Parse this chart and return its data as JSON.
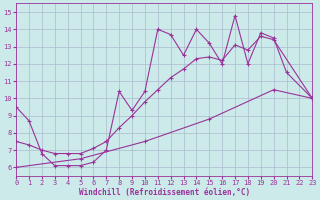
{
  "xlabel": "Windchill (Refroidissement éolien,°C)",
  "xlim": [
    0,
    23
  ],
  "ylim": [
    5.5,
    15.5
  ],
  "yticks": [
    6,
    7,
    8,
    9,
    10,
    11,
    12,
    13,
    14,
    15
  ],
  "xticks": [
    0,
    1,
    2,
    3,
    4,
    5,
    6,
    7,
    8,
    9,
    10,
    11,
    12,
    13,
    14,
    15,
    16,
    17,
    18,
    19,
    20,
    21,
    22,
    23
  ],
  "bg_color": "#cceaea",
  "grid_color": "#aabbcc",
  "line_color": "#993399",
  "line1_x": [
    0,
    1,
    2,
    3,
    4,
    5,
    6,
    7,
    8,
    9,
    10,
    11,
    12,
    13,
    14,
    15,
    16,
    17,
    18,
    19,
    20,
    21,
    23
  ],
  "line1_y": [
    9.5,
    8.7,
    6.8,
    6.1,
    6.1,
    6.1,
    6.3,
    7.0,
    10.4,
    9.3,
    10.4,
    14.0,
    13.7,
    12.5,
    14.0,
    13.2,
    12.0,
    14.8,
    12.0,
    13.8,
    13.5,
    11.5,
    10.0
  ],
  "line2_x": [
    0,
    1,
    2,
    3,
    4,
    5,
    6,
    7,
    8,
    9,
    10,
    11,
    12,
    13,
    14,
    15,
    16,
    17,
    18,
    19,
    20,
    23
  ],
  "line2_y": [
    7.5,
    7.3,
    7.0,
    6.8,
    6.8,
    6.8,
    7.1,
    7.5,
    8.3,
    9.0,
    9.8,
    10.5,
    11.2,
    11.7,
    12.3,
    12.4,
    12.2,
    13.1,
    12.8,
    13.6,
    13.4,
    10.0
  ],
  "line3_x": [
    0,
    5,
    10,
    15,
    20,
    23
  ],
  "line3_y": [
    6.0,
    6.5,
    7.5,
    8.8,
    10.5,
    10.0
  ]
}
